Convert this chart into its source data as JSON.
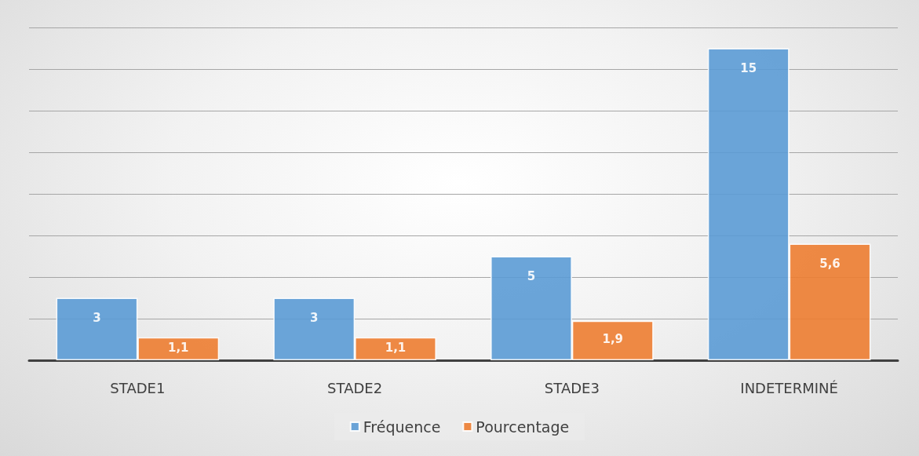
{
  "chart_data": {
    "type": "bar",
    "categories": [
      "STADE1",
      "STADE2",
      "STADE3",
      "INDETERMINÉ"
    ],
    "series": [
      {
        "name": "Fréquence",
        "color": "#5b9bd5",
        "values": [
          3,
          3,
          5,
          15
        ],
        "value_labels": [
          "3",
          "3",
          "5",
          "15"
        ]
      },
      {
        "name": "Pourcentage",
        "color": "#ed7d31",
        "values": [
          1.1,
          1.1,
          1.9,
          5.6
        ],
        "value_labels": [
          "1,1",
          "1,1",
          "1,9",
          "5,6"
        ]
      }
    ],
    "ylim": [
      0,
      16
    ],
    "yticks": [
      {
        "value": 0,
        "label": null
      },
      {
        "value": 2,
        "label": null
      },
      {
        "value": 4,
        "label": null
      },
      {
        "value": 6,
        "label": null
      },
      {
        "value": 8,
        "label": null
      },
      {
        "value": 10,
        "label": null
      },
      {
        "value": 12,
        "label": null
      },
      {
        "value": 14,
        "label": null
      },
      {
        "value": 16,
        "label": null
      }
    ],
    "grid": "y",
    "legend": "bottom",
    "tick_labels": "x"
  }
}
